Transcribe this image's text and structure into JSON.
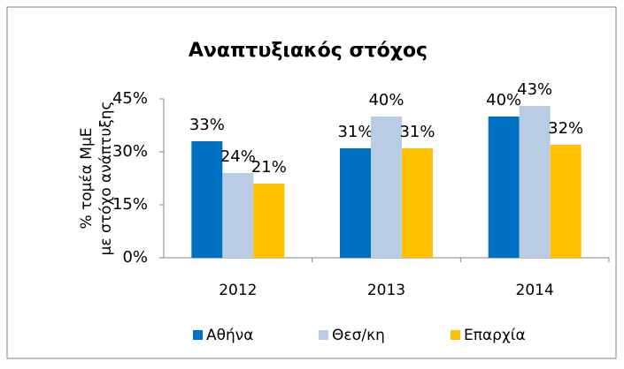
{
  "chart_data": {
    "type": "bar",
    "title": "Αναπτυξιακός στόχος",
    "y_label": [
      "% τομέα ΜμΕ",
      "με στόχο ανάπτυξης"
    ],
    "categories": [
      "2012",
      "2013",
      "2014"
    ],
    "series": [
      {
        "name": "Αθήνα",
        "color": "#0070c0",
        "values": [
          33,
          31,
          40
        ],
        "value_labels": [
          "33%",
          "31%",
          "40%"
        ]
      },
      {
        "name": "Θεσ/κη",
        "color": "#b8cce4",
        "values": [
          24,
          40,
          43
        ],
        "value_labels": [
          "24%",
          "40%",
          "43%"
        ]
      },
      {
        "name": "Επαρχία",
        "color": "#ffc000",
        "values": [
          21,
          31,
          32
        ],
        "value_labels": [
          "21%",
          "31%",
          "32%"
        ]
      }
    ],
    "ylim": [
      0,
      45
    ],
    "yticks": [
      {
        "value": 0,
        "label": "0%"
      },
      {
        "value": 15,
        "label": "15%"
      },
      {
        "value": 30,
        "label": "30%"
      },
      {
        "value": 45,
        "label": "45%"
      }
    ],
    "grid": false,
    "legend": "bottom"
  }
}
